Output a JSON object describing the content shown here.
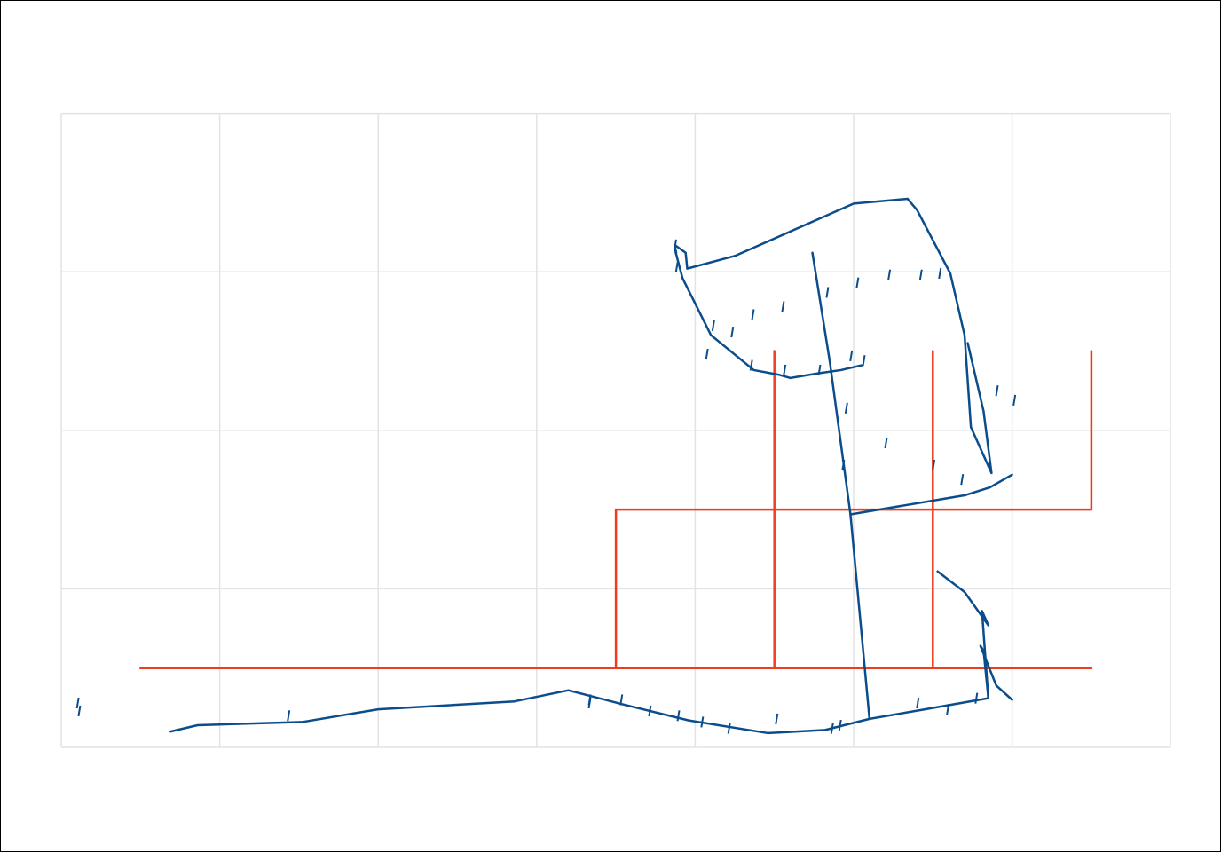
{
  "colors": {
    "background": "#ffffff",
    "frame_border": "#000000",
    "grid": "#e3e3e3",
    "red_network": "#f03c1e",
    "blue_network": "#0b4d8c"
  },
  "grid": {
    "columns": 7,
    "rows": 4,
    "visible": true
  },
  "red_network": {
    "name": "",
    "polylines": [
      [
        [
          0.5,
          0.5
        ],
        [
          6.5,
          0.5
        ]
      ],
      [
        [
          3.5,
          0.5
        ],
        [
          3.5,
          1.5
        ],
        [
          6.5,
          1.5
        ],
        [
          6.5,
          2.5
        ]
      ],
      [
        [
          4.5,
          0.5
        ],
        [
          4.5,
          2.5
        ]
      ],
      [
        [
          5.5,
          0.5
        ],
        [
          5.5,
          2.5
        ]
      ]
    ]
  },
  "blue_network": {
    "name": "",
    "polylines": [
      [
        [
          0.69,
          0.1
        ],
        [
          0.86,
          0.14
        ],
        [
          1.52,
          0.16
        ],
        [
          2.0,
          0.24
        ],
        [
          2.86,
          0.29
        ],
        [
          3.2,
          0.36
        ],
        [
          3.55,
          0.27
        ],
        [
          3.96,
          0.17
        ],
        [
          4.46,
          0.09
        ],
        [
          4.82,
          0.11
        ],
        [
          5.1,
          0.18
        ],
        [
          5.45,
          0.24
        ],
        [
          5.85,
          0.31
        ]
      ],
      [
        [
          5.1,
          0.18
        ],
        [
          4.98,
          1.47
        ],
        [
          4.85,
          2.43
        ],
        [
          4.74,
          3.12
        ]
      ],
      [
        [
          4.98,
          1.47
        ],
        [
          5.7,
          1.59
        ],
        [
          5.86,
          1.64
        ],
        [
          6.0,
          1.72
        ]
      ],
      [
        [
          5.72,
          2.55
        ],
        [
          5.82,
          2.12
        ],
        [
          5.87,
          1.73
        ],
        [
          5.74,
          2.02
        ],
        [
          5.7,
          2.6
        ],
        [
          5.61,
          2.99
        ],
        [
          5.4,
          3.39
        ],
        [
          5.34,
          3.46
        ]
      ],
      [
        [
          5.34,
          3.46
        ],
        [
          5.0,
          3.43
        ],
        [
          4.25,
          3.1
        ],
        [
          3.95,
          3.02
        ],
        [
          3.94,
          3.12
        ],
        [
          3.87,
          3.17
        ],
        [
          3.88,
          3.12
        ]
      ],
      [
        [
          3.88,
          3.12
        ],
        [
          3.87,
          3.15
        ],
        [
          3.92,
          2.96
        ],
        [
          4.1,
          2.6
        ],
        [
          4.37,
          2.38
        ],
        [
          4.53,
          2.35
        ],
        [
          4.6,
          2.33
        ],
        [
          4.78,
          2.36
        ],
        [
          4.92,
          2.38
        ],
        [
          5.05,
          2.41
        ]
      ],
      [
        [
          5.85,
          0.31
        ],
        [
          5.82,
          0.61
        ],
        [
          5.8,
          0.64
        ],
        [
          5.9,
          0.39
        ],
        [
          6.0,
          0.3
        ]
      ],
      [
        [
          5.85,
          0.31
        ],
        [
          5.81,
          0.86
        ],
        [
          5.85,
          0.77
        ],
        [
          5.7,
          0.98
        ],
        [
          5.53,
          1.11
        ]
      ]
    ],
    "ticks": [
      [
        0.12,
        0.23
      ],
      [
        0.11,
        0.28
      ],
      [
        1.44,
        0.2
      ],
      [
        3.34,
        0.3
      ],
      [
        3.34,
        0.28
      ],
      [
        3.54,
        0.3
      ],
      [
        3.72,
        0.23
      ],
      [
        3.9,
        0.2
      ],
      [
        4.05,
        0.16
      ],
      [
        4.22,
        0.12
      ],
      [
        4.52,
        0.18
      ],
      [
        4.87,
        0.12
      ],
      [
        4.92,
        0.14
      ],
      [
        5.41,
        0.28
      ],
      [
        5.6,
        0.24
      ],
      [
        5.78,
        0.31
      ],
      [
        3.88,
        3.17
      ],
      [
        3.89,
        3.03
      ],
      [
        4.12,
        2.66
      ],
      [
        4.36,
        2.41
      ],
      [
        4.57,
        2.38
      ],
      [
        4.79,
        2.38
      ],
      [
        4.99,
        2.47
      ],
      [
        5.07,
        2.44
      ],
      [
        4.08,
        2.48
      ],
      [
        4.24,
        2.62
      ],
      [
        4.37,
        2.73
      ],
      [
        4.56,
        2.78
      ],
      [
        4.84,
        2.87
      ],
      [
        5.03,
        2.93
      ],
      [
        5.23,
        2.98
      ],
      [
        5.43,
        2.98
      ],
      [
        5.55,
        2.99
      ],
      [
        4.94,
        1.78
      ],
      [
        4.96,
        2.14
      ],
      [
        5.21,
        1.92
      ],
      [
        5.51,
        1.78
      ],
      [
        5.69,
        1.69
      ],
      [
        5.91,
        2.25
      ],
      [
        6.02,
        2.19
      ]
    ]
  }
}
